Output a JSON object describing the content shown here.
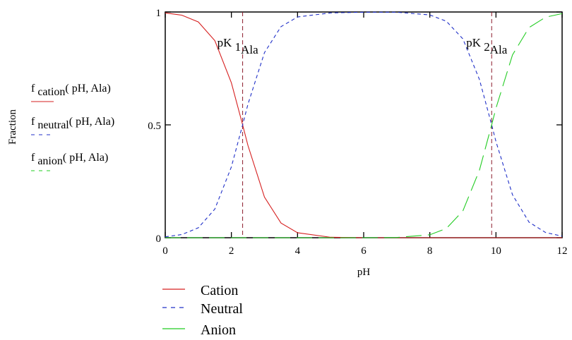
{
  "chart_data": {
    "type": "line",
    "xlabel": "pH",
    "ylabel": "Fraction",
    "xlim": [
      0,
      12
    ],
    "ylim": [
      0,
      1
    ],
    "x_ticks": [
      "0",
      "2",
      "4",
      "6",
      "8",
      "10",
      "12"
    ],
    "y_ticks": [
      "0",
      "0.5",
      "1"
    ],
    "pK1": 2.34,
    "pK2": 9.87,
    "x": [
      0,
      0.5,
      1,
      1.5,
      2,
      2.34,
      2.5,
      3,
      3.5,
      4,
      5,
      6,
      7,
      8,
      8.5,
      9,
      9.5,
      9.87,
      10,
      10.5,
      11,
      11.5,
      12
    ],
    "series": [
      {
        "values": [
          0.996,
          0.986,
          0.956,
          0.873,
          0.686,
          0.5,
          0.409,
          0.18,
          0.065,
          0.022,
          0.002,
          0.0,
          0.0,
          0.0,
          0.0,
          0.0,
          0.0,
          0.0,
          0.0,
          0.0,
          0.0,
          0.0,
          0.0
        ]
      },
      {
        "values": [
          0.004,
          0.014,
          0.044,
          0.127,
          0.314,
          0.5,
          0.591,
          0.82,
          0.935,
          0.978,
          0.996,
          0.999,
          0.999,
          0.987,
          0.959,
          0.881,
          0.701,
          0.5,
          0.426,
          0.19,
          0.069,
          0.023,
          0.007
        ]
      },
      {
        "values": [
          0.0,
          0.0,
          0.0,
          0.0,
          0.0,
          0.0,
          0.0,
          0.0,
          0.0,
          0.0,
          0.0,
          0.0,
          0.001,
          0.013,
          0.041,
          0.119,
          0.299,
          0.5,
          0.574,
          0.81,
          0.931,
          0.977,
          0.993
        ]
      }
    ],
    "curve_labels": [
      {
        "main": "f",
        "sub": "cation",
        "args": "( pH, Ala)",
        "color": "#d62020",
        "dash": "solid"
      },
      {
        "main": "f",
        "sub": "neutral",
        "args": "( pH, Ala)",
        "color": "#2030c8",
        "dash": "short"
      },
      {
        "main": "f",
        "sub": "anion",
        "args": "( pH, Ala)",
        "color": "#22cc22",
        "dash": "long"
      }
    ],
    "pk_labels": [
      {
        "main": "pK",
        "sub": "1",
        "sub2": "Ala"
      },
      {
        "main": "pK",
        "sub": "2",
        "sub2": "Ala"
      }
    ],
    "legend": {
      "position": "bottom-left",
      "entries": [
        "Cation",
        "Neutral",
        "Anion"
      ]
    },
    "marker_color": "#8b1a2a",
    "grid": false
  }
}
